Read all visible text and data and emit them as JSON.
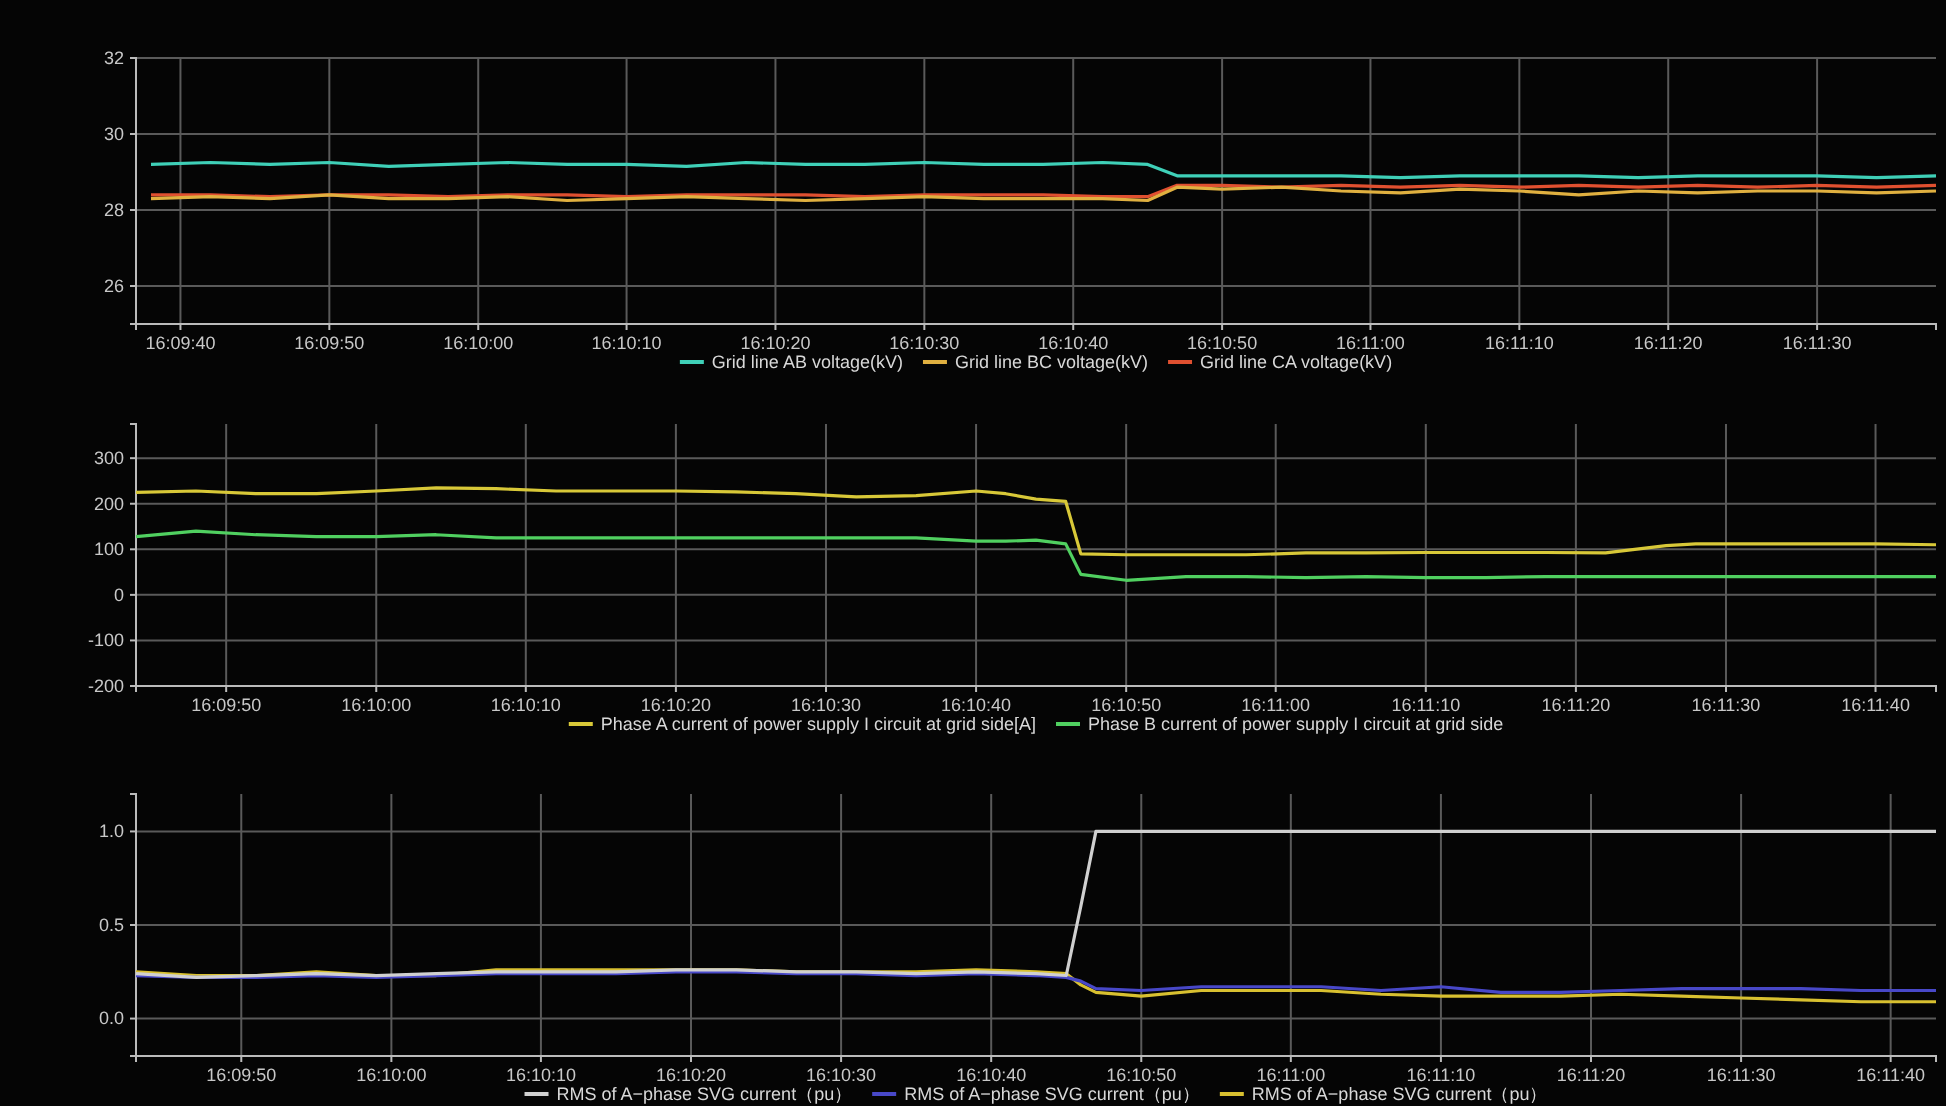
{
  "chart_data": [
    {
      "type": "line",
      "legend": "bottom",
      "grid": true,
      "xlim": [
        16.16028,
        16.19389
      ],
      "ylim": [
        25,
        32
      ],
      "yticks": [
        26,
        28,
        30,
        32
      ],
      "xticks": [
        {
          "value": 16.16111,
          "label": "16:09:40"
        },
        {
          "value": 16.16389,
          "label": "16:09:50"
        },
        {
          "value": 16.16667,
          "label": "16:10:00"
        },
        {
          "value": 16.16944,
          "label": "16:10:10"
        },
        {
          "value": 16.17222,
          "label": "16:10:20"
        },
        {
          "value": 16.175,
          "label": "16:10:30"
        },
        {
          "value": 16.17778,
          "label": "16:10:40"
        },
        {
          "value": 16.18056,
          "label": "16:10:50"
        },
        {
          "value": 16.18333,
          "label": "16:11:00"
        },
        {
          "value": 16.18611,
          "label": "16:11:10"
        },
        {
          "value": 16.18889,
          "label": "16:11:20"
        },
        {
          "value": 16.19167,
          "label": "16:11:30"
        }
      ],
      "x": [
        16.16056,
        16.16167,
        16.16278,
        16.16389,
        16.165,
        16.16611,
        16.16722,
        16.16833,
        16.16944,
        16.17056,
        16.17167,
        16.17278,
        16.17389,
        16.175,
        16.17611,
        16.17722,
        16.17833,
        16.17917,
        16.17972,
        16.18056,
        16.18167,
        16.18278,
        16.18389,
        16.185,
        16.18611,
        16.18722,
        16.18833,
        16.18944,
        16.19056,
        16.19167,
        16.19278,
        16.19389
      ],
      "series": [
        {
          "name": "Grid line AB voltage(kV)",
          "color": "#3fd0b8",
          "values": [
            29.2,
            29.25,
            29.2,
            29.25,
            29.15,
            29.2,
            29.25,
            29.2,
            29.2,
            29.15,
            29.25,
            29.2,
            29.2,
            29.25,
            29.2,
            29.2,
            29.25,
            29.2,
            28.9,
            28.9,
            28.9,
            28.9,
            28.85,
            28.9,
            28.9,
            28.9,
            28.85,
            28.9,
            28.9,
            28.9,
            28.85,
            28.9
          ]
        },
        {
          "name": "Grid line BC voltage(kV)",
          "color": "#e0b040",
          "values": [
            28.3,
            28.35,
            28.3,
            28.4,
            28.3,
            28.3,
            28.35,
            28.25,
            28.3,
            28.35,
            28.3,
            28.25,
            28.3,
            28.35,
            28.3,
            28.3,
            28.3,
            28.25,
            28.6,
            28.55,
            28.6,
            28.5,
            28.45,
            28.55,
            28.5,
            28.4,
            28.5,
            28.45,
            28.5,
            28.5,
            28.45,
            28.5
          ]
        },
        {
          "name": "Grid line CA voltage(kV)",
          "color": "#e05030",
          "values": [
            28.4,
            28.4,
            28.35,
            28.4,
            28.4,
            28.35,
            28.4,
            28.4,
            28.35,
            28.4,
            28.4,
            28.4,
            28.35,
            28.4,
            28.4,
            28.4,
            28.35,
            28.35,
            28.65,
            28.65,
            28.6,
            28.65,
            28.6,
            28.65,
            28.6,
            28.65,
            28.6,
            28.65,
            28.6,
            28.65,
            28.6,
            28.65
          ]
        }
      ]
    },
    {
      "type": "line",
      "legend": "bottom",
      "grid": true,
      "xlim": [
        16.16222,
        16.19556
      ],
      "ylim": [
        -200,
        375
      ],
      "yticks": [
        -200,
        -100,
        0,
        100,
        200,
        300
      ],
      "xticks": [
        {
          "value": 16.16389,
          "label": "16:09:50"
        },
        {
          "value": 16.16667,
          "label": "16:10:00"
        },
        {
          "value": 16.16944,
          "label": "16:10:10"
        },
        {
          "value": 16.17222,
          "label": "16:10:20"
        },
        {
          "value": 16.175,
          "label": "16:10:30"
        },
        {
          "value": 16.17778,
          "label": "16:10:40"
        },
        {
          "value": 16.18056,
          "label": "16:10:50"
        },
        {
          "value": 16.18333,
          "label": "16:11:00"
        },
        {
          "value": 16.18611,
          "label": "16:11:10"
        },
        {
          "value": 16.18889,
          "label": "16:11:20"
        },
        {
          "value": 16.19167,
          "label": "16:11:30"
        },
        {
          "value": 16.19444,
          "label": "16:11:40"
        }
      ],
      "x": [
        16.16222,
        16.16333,
        16.16444,
        16.16556,
        16.16667,
        16.16778,
        16.16889,
        16.17,
        16.17111,
        16.17222,
        16.17333,
        16.17444,
        16.17556,
        16.17667,
        16.17778,
        16.17833,
        16.17889,
        16.17944,
        16.17972,
        16.18056,
        16.18167,
        16.18278,
        16.18389,
        16.185,
        16.18611,
        16.18722,
        16.18833,
        16.18944,
        16.19056,
        16.19111,
        16.19222,
        16.19333,
        16.19444,
        16.19556
      ],
      "series": [
        {
          "name": "Phase A current of power supply I circuit at grid side[A]",
          "color": "#d8c838",
          "values": [
            225,
            228,
            222,
            222,
            228,
            235,
            233,
            228,
            228,
            228,
            226,
            222,
            215,
            218,
            228,
            222,
            210,
            205,
            90,
            88,
            88,
            88,
            92,
            92,
            93,
            93,
            93,
            92,
            108,
            112,
            112,
            112,
            112,
            110
          ]
        },
        {
          "name": "Phase B current of power supply I circuit at grid side",
          "color": "#50d060",
          "values": [
            128,
            140,
            132,
            128,
            128,
            132,
            125,
            125,
            125,
            125,
            125,
            125,
            125,
            125,
            118,
            118,
            120,
            112,
            45,
            32,
            40,
            40,
            38,
            40,
            38,
            38,
            40,
            40,
            40,
            40,
            40,
            40,
            40,
            40
          ]
        }
      ]
    },
    {
      "type": "line",
      "legend": "bottom",
      "grid": true,
      "xlim": [
        16.16194,
        16.19528
      ],
      "ylim": [
        -0.2,
        1.2
      ],
      "yticks": [
        {
          "value": 0,
          "label": "0.0"
        },
        {
          "value": 0.5,
          "label": "0.5"
        },
        {
          "value": 1,
          "label": "1.0"
        }
      ],
      "xticks": [
        {
          "value": 16.16389,
          "label": "16:09:50"
        },
        {
          "value": 16.16667,
          "label": "16:10:00"
        },
        {
          "value": 16.16944,
          "label": "16:10:10"
        },
        {
          "value": 16.17222,
          "label": "16:10:20"
        },
        {
          "value": 16.175,
          "label": "16:10:30"
        },
        {
          "value": 16.17778,
          "label": "16:10:40"
        },
        {
          "value": 16.18056,
          "label": "16:10:50"
        },
        {
          "value": 16.18333,
          "label": "16:11:00"
        },
        {
          "value": 16.18611,
          "label": "16:11:10"
        },
        {
          "value": 16.18889,
          "label": "16:11:20"
        },
        {
          "value": 16.19167,
          "label": "16:11:30"
        },
        {
          "value": 16.19444,
          "label": "16:11:40"
        }
      ],
      "x": [
        16.16194,
        16.16306,
        16.16417,
        16.16528,
        16.16639,
        16.1675,
        16.16861,
        16.16972,
        16.17083,
        16.17194,
        16.17306,
        16.17417,
        16.17528,
        16.17639,
        16.1775,
        16.17861,
        16.17917,
        16.17944,
        16.17972,
        16.18056,
        16.18167,
        16.18278,
        16.18389,
        16.185,
        16.18611,
        16.18722,
        16.18833,
        16.18944,
        16.19056,
        16.19167,
        16.19278,
        16.19389,
        16.19528
      ],
      "series": [
        {
          "name": "RMS of A−phase SVG current（pu）",
          "color": "#d0d0d0",
          "values": [
            0.24,
            0.22,
            0.23,
            0.24,
            0.23,
            0.24,
            0.25,
            0.25,
            0.25,
            0.26,
            0.26,
            0.25,
            0.25,
            0.24,
            0.25,
            0.24,
            0.23,
            0.6,
            1.0,
            1.0,
            1.0,
            1.0,
            1.0,
            1.0,
            1.0,
            1.0,
            1.0,
            1.0,
            1.0,
            1.0,
            1.0,
            1.0,
            1.0
          ]
        },
        {
          "name": "RMS of A−phase SVG current（pu）",
          "color": "#4848c8",
          "values": [
            0.23,
            0.22,
            0.22,
            0.23,
            0.22,
            0.23,
            0.24,
            0.24,
            0.24,
            0.25,
            0.25,
            0.24,
            0.24,
            0.23,
            0.24,
            0.23,
            0.22,
            0.2,
            0.16,
            0.15,
            0.17,
            0.17,
            0.17,
            0.15,
            0.17,
            0.14,
            0.14,
            0.15,
            0.16,
            0.16,
            0.16,
            0.15,
            0.15
          ]
        },
        {
          "name": "RMS of A−phase SVG current（pu）",
          "color": "#d8c030",
          "values": [
            0.25,
            0.23,
            0.23,
            0.25,
            0.23,
            0.23,
            0.26,
            0.26,
            0.26,
            0.26,
            0.26,
            0.25,
            0.25,
            0.25,
            0.26,
            0.25,
            0.24,
            0.18,
            0.14,
            0.12,
            0.15,
            0.15,
            0.15,
            0.13,
            0.12,
            0.12,
            0.12,
            0.13,
            0.12,
            0.11,
            0.1,
            0.09,
            0.09
          ]
        }
      ]
    }
  ]
}
